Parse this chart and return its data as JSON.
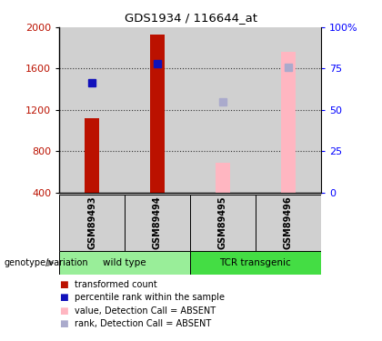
{
  "title": "GDS1934 / 116644_at",
  "samples": [
    "GSM89493",
    "GSM89494",
    "GSM89495",
    "GSM89496"
  ],
  "bar_bottom": 400,
  "ylim_left": [
    400,
    2000
  ],
  "ylim_right": [
    0,
    100
  ],
  "yticks_left": [
    400,
    800,
    1200,
    1600,
    2000
  ],
  "yticks_right": [
    0,
    25,
    50,
    75,
    100
  ],
  "ytick_right_labels": [
    "0",
    "25",
    "50",
    "75",
    "100%"
  ],
  "red_bars": [
    1120,
    1930,
    null,
    null
  ],
  "pink_bars": [
    null,
    null,
    690,
    1760
  ],
  "blue_squares": [
    1460,
    1650,
    null,
    null
  ],
  "pink_squares": [
    null,
    null,
    1280,
    1610
  ],
  "red_color": "#BB1100",
  "pink_color": "#FFB6C1",
  "blue_color": "#1111BB",
  "blue_light_color": "#AAAACC",
  "grid_color": "#333333",
  "sample_bg_color": "#D0D0D0",
  "wt_color": "#99EE99",
  "tcr_color": "#44DD44",
  "legend_labels": [
    "transformed count",
    "percentile rank within the sample",
    "value, Detection Call = ABSENT",
    "rank, Detection Call = ABSENT"
  ],
  "legend_colors": [
    "#BB1100",
    "#1111BB",
    "#FFB6C1",
    "#AAAACC"
  ]
}
